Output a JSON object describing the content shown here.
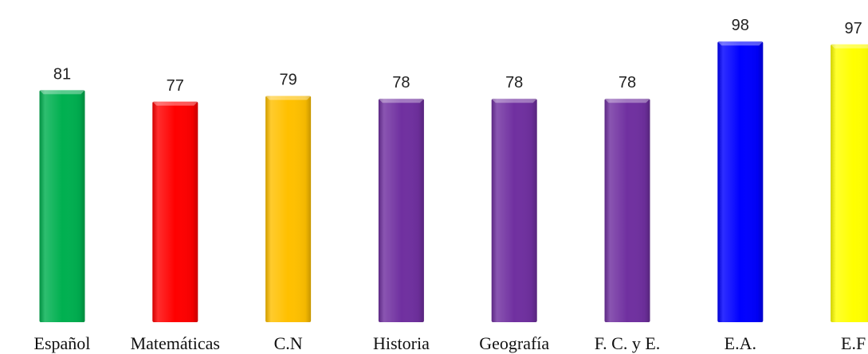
{
  "chart_data": {
    "type": "bar",
    "categories": [
      "Español",
      "Matemáticas",
      "C.N",
      "Historia",
      "Geografía",
      "F. C. y E.",
      "E.A.",
      "E.F"
    ],
    "values": [
      81,
      77,
      79,
      78,
      78,
      78,
      98,
      97
    ],
    "data_labels": [
      "81",
      "77",
      "79",
      "78",
      "78",
      "78",
      "98",
      "97"
    ],
    "colors": [
      "#00b050",
      "#ff0000",
      "#ffc000",
      "#7030a0",
      "#7030a0",
      "#7030a0",
      "#0000ff",
      "#ffff00"
    ],
    "ylim": [
      0,
      100
    ],
    "grid": false,
    "legend": "none",
    "title": "",
    "xlabel": "",
    "ylabel": ""
  }
}
